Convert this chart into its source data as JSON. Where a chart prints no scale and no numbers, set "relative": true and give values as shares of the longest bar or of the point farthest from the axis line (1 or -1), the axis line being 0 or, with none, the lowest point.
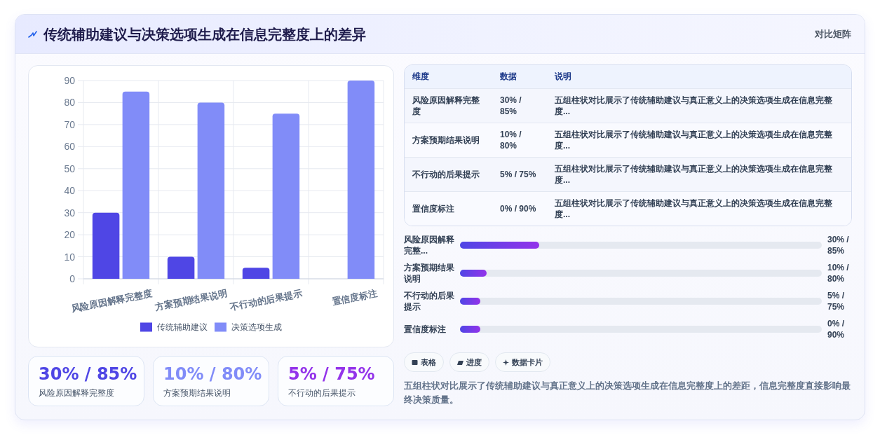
{
  "chart_data": [
    {
      "type": "bar",
      "title": "传统辅助建议与决策选项生成在信息完整度上的差异",
      "annotations": [
        "对比矩阵"
      ],
      "categories": [
        "风险原因解释完整度",
        "方案预期结果说明",
        "不行动的后果提示",
        "置信度标注"
      ],
      "series": [
        {
          "name": "传统辅助建议",
          "color": "#4f46e5",
          "values": [
            30,
            10,
            5,
            0
          ]
        },
        {
          "name": "决策选项生成",
          "color": "#818cf8",
          "values": [
            85,
            80,
            75,
            90
          ]
        }
      ],
      "ylim": [
        0,
        90
      ],
      "yticks": [
        0,
        10,
        20,
        30,
        40,
        50,
        60,
        70,
        80,
        90
      ],
      "grid": true,
      "legend": "bottom"
    },
    {
      "type": "other",
      "categories": [
        "维度",
        "数据",
        "说明"
      ],
      "cell_labels": [
        [
          "风险原因解释完整度",
          "30% / 85%",
          "五组柱状对比展示了传统辅助建议与真正意义上的决策选项生成在信息完整度..."
        ],
        [
          "方案预期结果说明",
          "10% / 80%",
          "五组柱状对比展示了传统辅助建议与真正意义上的决策选项生成在信息完整度..."
        ],
        [
          "不行动的后果提示",
          "5% / 75%",
          "五组柱状对比展示了传统辅助建议与真正意义上的决策选项生成在信息完整度..."
        ],
        [
          "置信度标注",
          "0% / 90%",
          "五组柱状对比展示了传统辅助建议与真正意义上的决策选项生成在信息完整度..."
        ]
      ]
    },
    {
      "type": "bar",
      "orientation": "horizontal",
      "relative": true,
      "categories": [
        "风险原因解释完整...",
        "方案预期结果说明",
        "不行动的后果提示",
        "置信度标注"
      ],
      "y2_categories": [
        "30% / 85%",
        "10% / 80%",
        "5% / 75%",
        "0% / 90%"
      ],
      "values": [
        1,
        0.34,
        0.26,
        0.26
      ],
      "color": "#4f46e5"
    },
    {
      "type": "other",
      "categories": [
        "风险原因解释完整度",
        "方案预期结果说明",
        "不行动的后果提示"
      ],
      "value_labels": [
        "30% / 85%",
        "10% / 80%",
        "5% / 75%"
      ]
    },
    {
      "type": "other",
      "categories": [
        "表格",
        "进度",
        "数据卡片"
      ],
      "annotations": [
        "五组柱状对比展示了传统辅助建议与真正意义上的决策选项生成在信息完整度上的差距，信息完整度直接影响最终决策质量。"
      ]
    }
  ]
}
